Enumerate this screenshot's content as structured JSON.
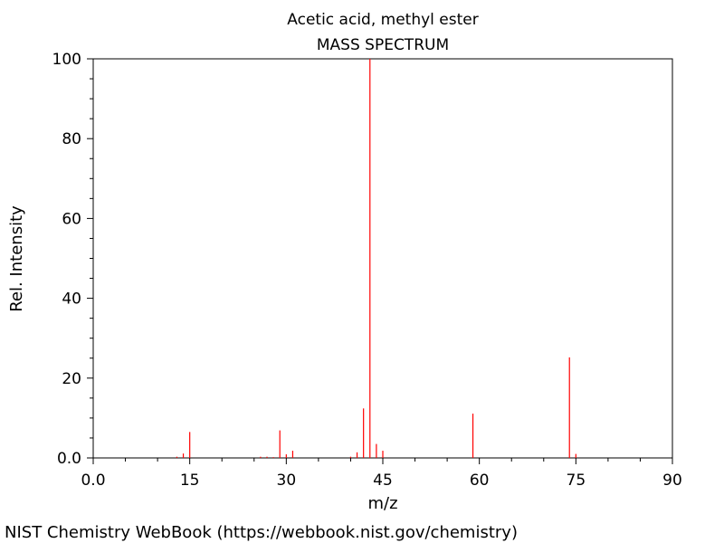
{
  "chart_data": {
    "type": "bar",
    "title": "Acetic acid, methyl ester",
    "subtitle": "MASS SPECTRUM",
    "xlabel": "m/z",
    "ylabel": "Rel. Intensity",
    "xlim": [
      0,
      90
    ],
    "ylim": [
      0,
      100
    ],
    "xticks": [
      0,
      15,
      30,
      45,
      60,
      75,
      90
    ],
    "xtick_labels": [
      "0.0",
      "15",
      "30",
      "45",
      "60",
      "75",
      "90"
    ],
    "yticks": [
      0,
      20,
      40,
      60,
      80,
      100
    ],
    "ytick_labels": [
      "0.0",
      "20",
      "40",
      "60",
      "80",
      "100"
    ],
    "grid": false,
    "bar_color": "#ff0000",
    "peaks": [
      {
        "mz": 13,
        "intensity": 0.3
      },
      {
        "mz": 14,
        "intensity": 1.1
      },
      {
        "mz": 15,
        "intensity": 6.5
      },
      {
        "mz": 26,
        "intensity": 0.3
      },
      {
        "mz": 27,
        "intensity": 0.3
      },
      {
        "mz": 28,
        "intensity": 0.2
      },
      {
        "mz": 29,
        "intensity": 6.9
      },
      {
        "mz": 30,
        "intensity": 0.9
      },
      {
        "mz": 31,
        "intensity": 1.8
      },
      {
        "mz": 40,
        "intensity": 0.3
      },
      {
        "mz": 41,
        "intensity": 1.4
      },
      {
        "mz": 42,
        "intensity": 12.4
      },
      {
        "mz": 43,
        "intensity": 100
      },
      {
        "mz": 44,
        "intensity": 3.5
      },
      {
        "mz": 45,
        "intensity": 1.8
      },
      {
        "mz": 59,
        "intensity": 11.1
      },
      {
        "mz": 74,
        "intensity": 25.2
      },
      {
        "mz": 75,
        "intensity": 1.0
      }
    ]
  },
  "footer": {
    "credit": "NIST Chemistry WebBook (https://webbook.nist.gov/chemistry)"
  }
}
